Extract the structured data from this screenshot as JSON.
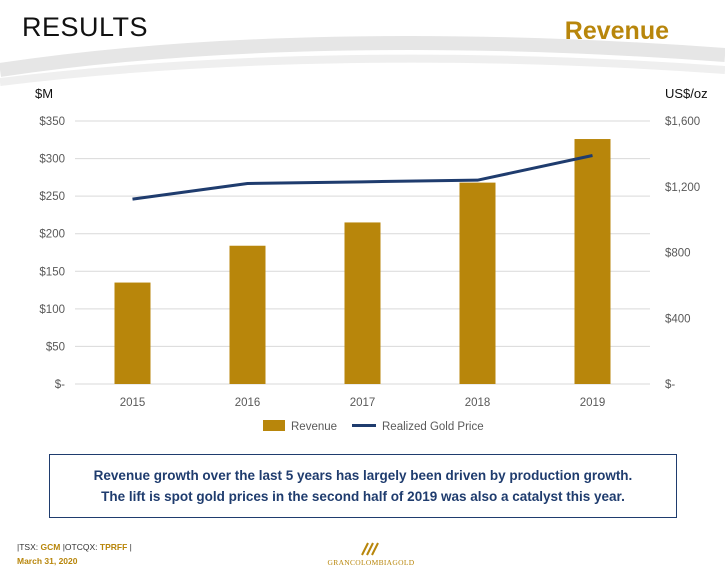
{
  "header": {
    "title": "RESULTS",
    "section": "Revenue"
  },
  "colors": {
    "gold": "#b8860b",
    "navy": "#1f3c6e",
    "axis_text": "#595959",
    "grid": "#d9d9d9"
  },
  "chart_data": {
    "type": "bar",
    "categories": [
      "2015",
      "2016",
      "2017",
      "2018",
      "2019"
    ],
    "series": [
      {
        "name": "Revenue",
        "type": "bar",
        "axis": "left",
        "values": [
          135,
          184,
          215,
          268,
          326
        ]
      },
      {
        "name": "Realized Gold Price",
        "type": "line",
        "axis": "right",
        "values": [
          1125,
          1220,
          1230,
          1240,
          1390
        ]
      }
    ],
    "ylabel_left": "$M",
    "ylabel_right": "US$/oz",
    "ylim_left": [
      0,
      350
    ],
    "yticks_left": [
      "$-",
      "$50",
      "$100",
      "$150",
      "$200",
      "$250",
      "$300",
      "$350"
    ],
    "ylim_right": [
      0,
      1600
    ],
    "yticks_right": [
      "$-",
      "$400",
      "$800",
      "$1,200",
      "$1,600"
    ],
    "grid": true,
    "legend_position": "bottom"
  },
  "callout": {
    "line1": "Revenue growth over the last 5 years has largely been driven by production growth.",
    "line2": "The lift is spot gold prices in the second half of 2019 was also a catalyst this year."
  },
  "footer": {
    "sep": "|",
    "tsx_label": "TSX: ",
    "tsx_symbol": "GCM",
    "otc_label": "OTCQX: ",
    "otc_symbol": "TPRFF",
    "date": "March 31, 2020",
    "logo_text": "GRANCOLOMBIAGOLD"
  }
}
